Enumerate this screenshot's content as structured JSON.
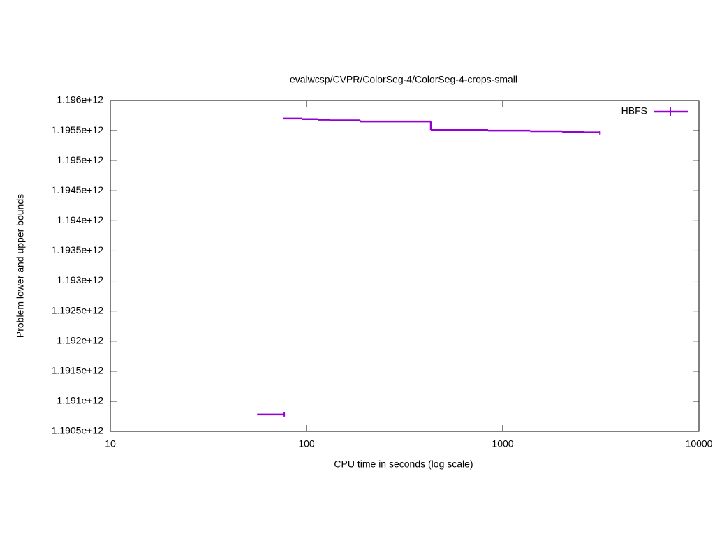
{
  "chart_data": {
    "type": "step",
    "title": "evalwcsp/CVPR/ColorSeg-4/ColorSeg-4-crops-small",
    "xlabel": "CPU time in seconds (log scale)",
    "ylabel": "Problem lower and upper bounds",
    "xscale": "log",
    "xlim": [
      10,
      10000
    ],
    "xticks": [
      10,
      100,
      1000,
      10000
    ],
    "ylim": [
      1190500000000,
      1196000000000
    ],
    "yticks": [
      {
        "value": 1190500000000,
        "label": "1.1905e+12"
      },
      {
        "value": 1191000000000,
        "label": "1.191e+12"
      },
      {
        "value": 1191500000000,
        "label": "1.1915e+12"
      },
      {
        "value": 1192000000000,
        "label": "1.192e+12"
      },
      {
        "value": 1192500000000,
        "label": "1.1925e+12"
      },
      {
        "value": 1193000000000,
        "label": "1.193e+12"
      },
      {
        "value": 1193500000000,
        "label": "1.1935e+12"
      },
      {
        "value": 1194000000000,
        "label": "1.194e+12"
      },
      {
        "value": 1194500000000,
        "label": "1.1945e+12"
      },
      {
        "value": 1195000000000,
        "label": "1.195e+12"
      },
      {
        "value": 1195500000000,
        "label": "1.1955e+12"
      },
      {
        "value": 1196000000000,
        "label": "1.196e+12"
      }
    ],
    "legend": "top-right",
    "series": [
      {
        "name": "HBFS",
        "color": "#9400d3",
        "x": [
          75.7,
          94.5,
          114,
          132,
          188,
          430,
          842,
          1380,
          2010,
          2600,
          3130
        ],
        "values": [
          1195700000000,
          1195690000000,
          1195680000000,
          1195670000000,
          1195650000000,
          1195510000000,
          1195500000000,
          1195490000000,
          1195480000000,
          1195470000000,
          1195460000000
        ]
      },
      {
        "color": "#9400d3",
        "x": [
          56,
          77
        ],
        "values": [
          1190780000000,
          1190780000000
        ]
      }
    ]
  }
}
